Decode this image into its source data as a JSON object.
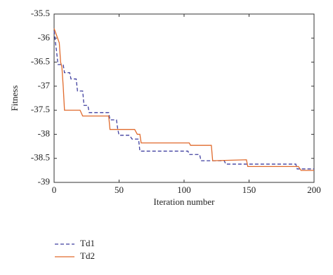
{
  "chart_data": {
    "type": "line",
    "xlabel": "Iteration number",
    "ylabel": "Fitness",
    "xlim": [
      0,
      200
    ],
    "xticks": [
      0,
      50,
      100,
      150,
      200
    ],
    "ylim": [
      -39,
      -35.5
    ],
    "yticks": [
      -39,
      -38.5,
      -38,
      -37.5,
      -37,
      -36.5,
      -36,
      -35.5
    ],
    "series": [
      {
        "name": "Td1",
        "color": "#3f3f9f",
        "dash": true,
        "x": [
          0,
          2,
          3,
          7,
          8,
          12,
          13,
          17,
          18,
          22,
          23,
          26,
          27,
          42,
          43,
          48,
          49,
          50,
          58,
          60,
          65,
          66,
          103,
          104,
          112,
          113,
          131,
          132,
          186,
          187,
          200
        ],
        "values": [
          -35.85,
          -36.3,
          -36.55,
          -36.55,
          -36.72,
          -36.72,
          -36.85,
          -36.85,
          -37.1,
          -37.1,
          -37.4,
          -37.4,
          -37.55,
          -37.55,
          -37.7,
          -37.7,
          -37.9,
          -38.02,
          -38.02,
          -38.1,
          -38.1,
          -38.35,
          -38.35,
          -38.42,
          -38.42,
          -38.55,
          -38.55,
          -38.62,
          -38.62,
          -38.72,
          -38.72
        ]
      },
      {
        "name": "Td2",
        "color": "#e06a2c",
        "dash": false,
        "x": [
          0,
          2,
          4,
          5,
          6,
          7,
          8,
          20,
          22,
          42,
          43,
          62,
          64,
          66,
          67,
          104,
          105,
          121,
          122,
          148,
          149,
          188,
          190,
          200
        ],
        "values": [
          -35.8,
          -35.95,
          -36.1,
          -36.5,
          -36.6,
          -37.0,
          -37.5,
          -37.5,
          -37.62,
          -37.62,
          -37.9,
          -37.9,
          -38.0,
          -38.0,
          -38.18,
          -38.18,
          -38.23,
          -38.23,
          -38.55,
          -38.53,
          -38.67,
          -38.67,
          -38.75,
          -38.75
        ]
      }
    ]
  }
}
